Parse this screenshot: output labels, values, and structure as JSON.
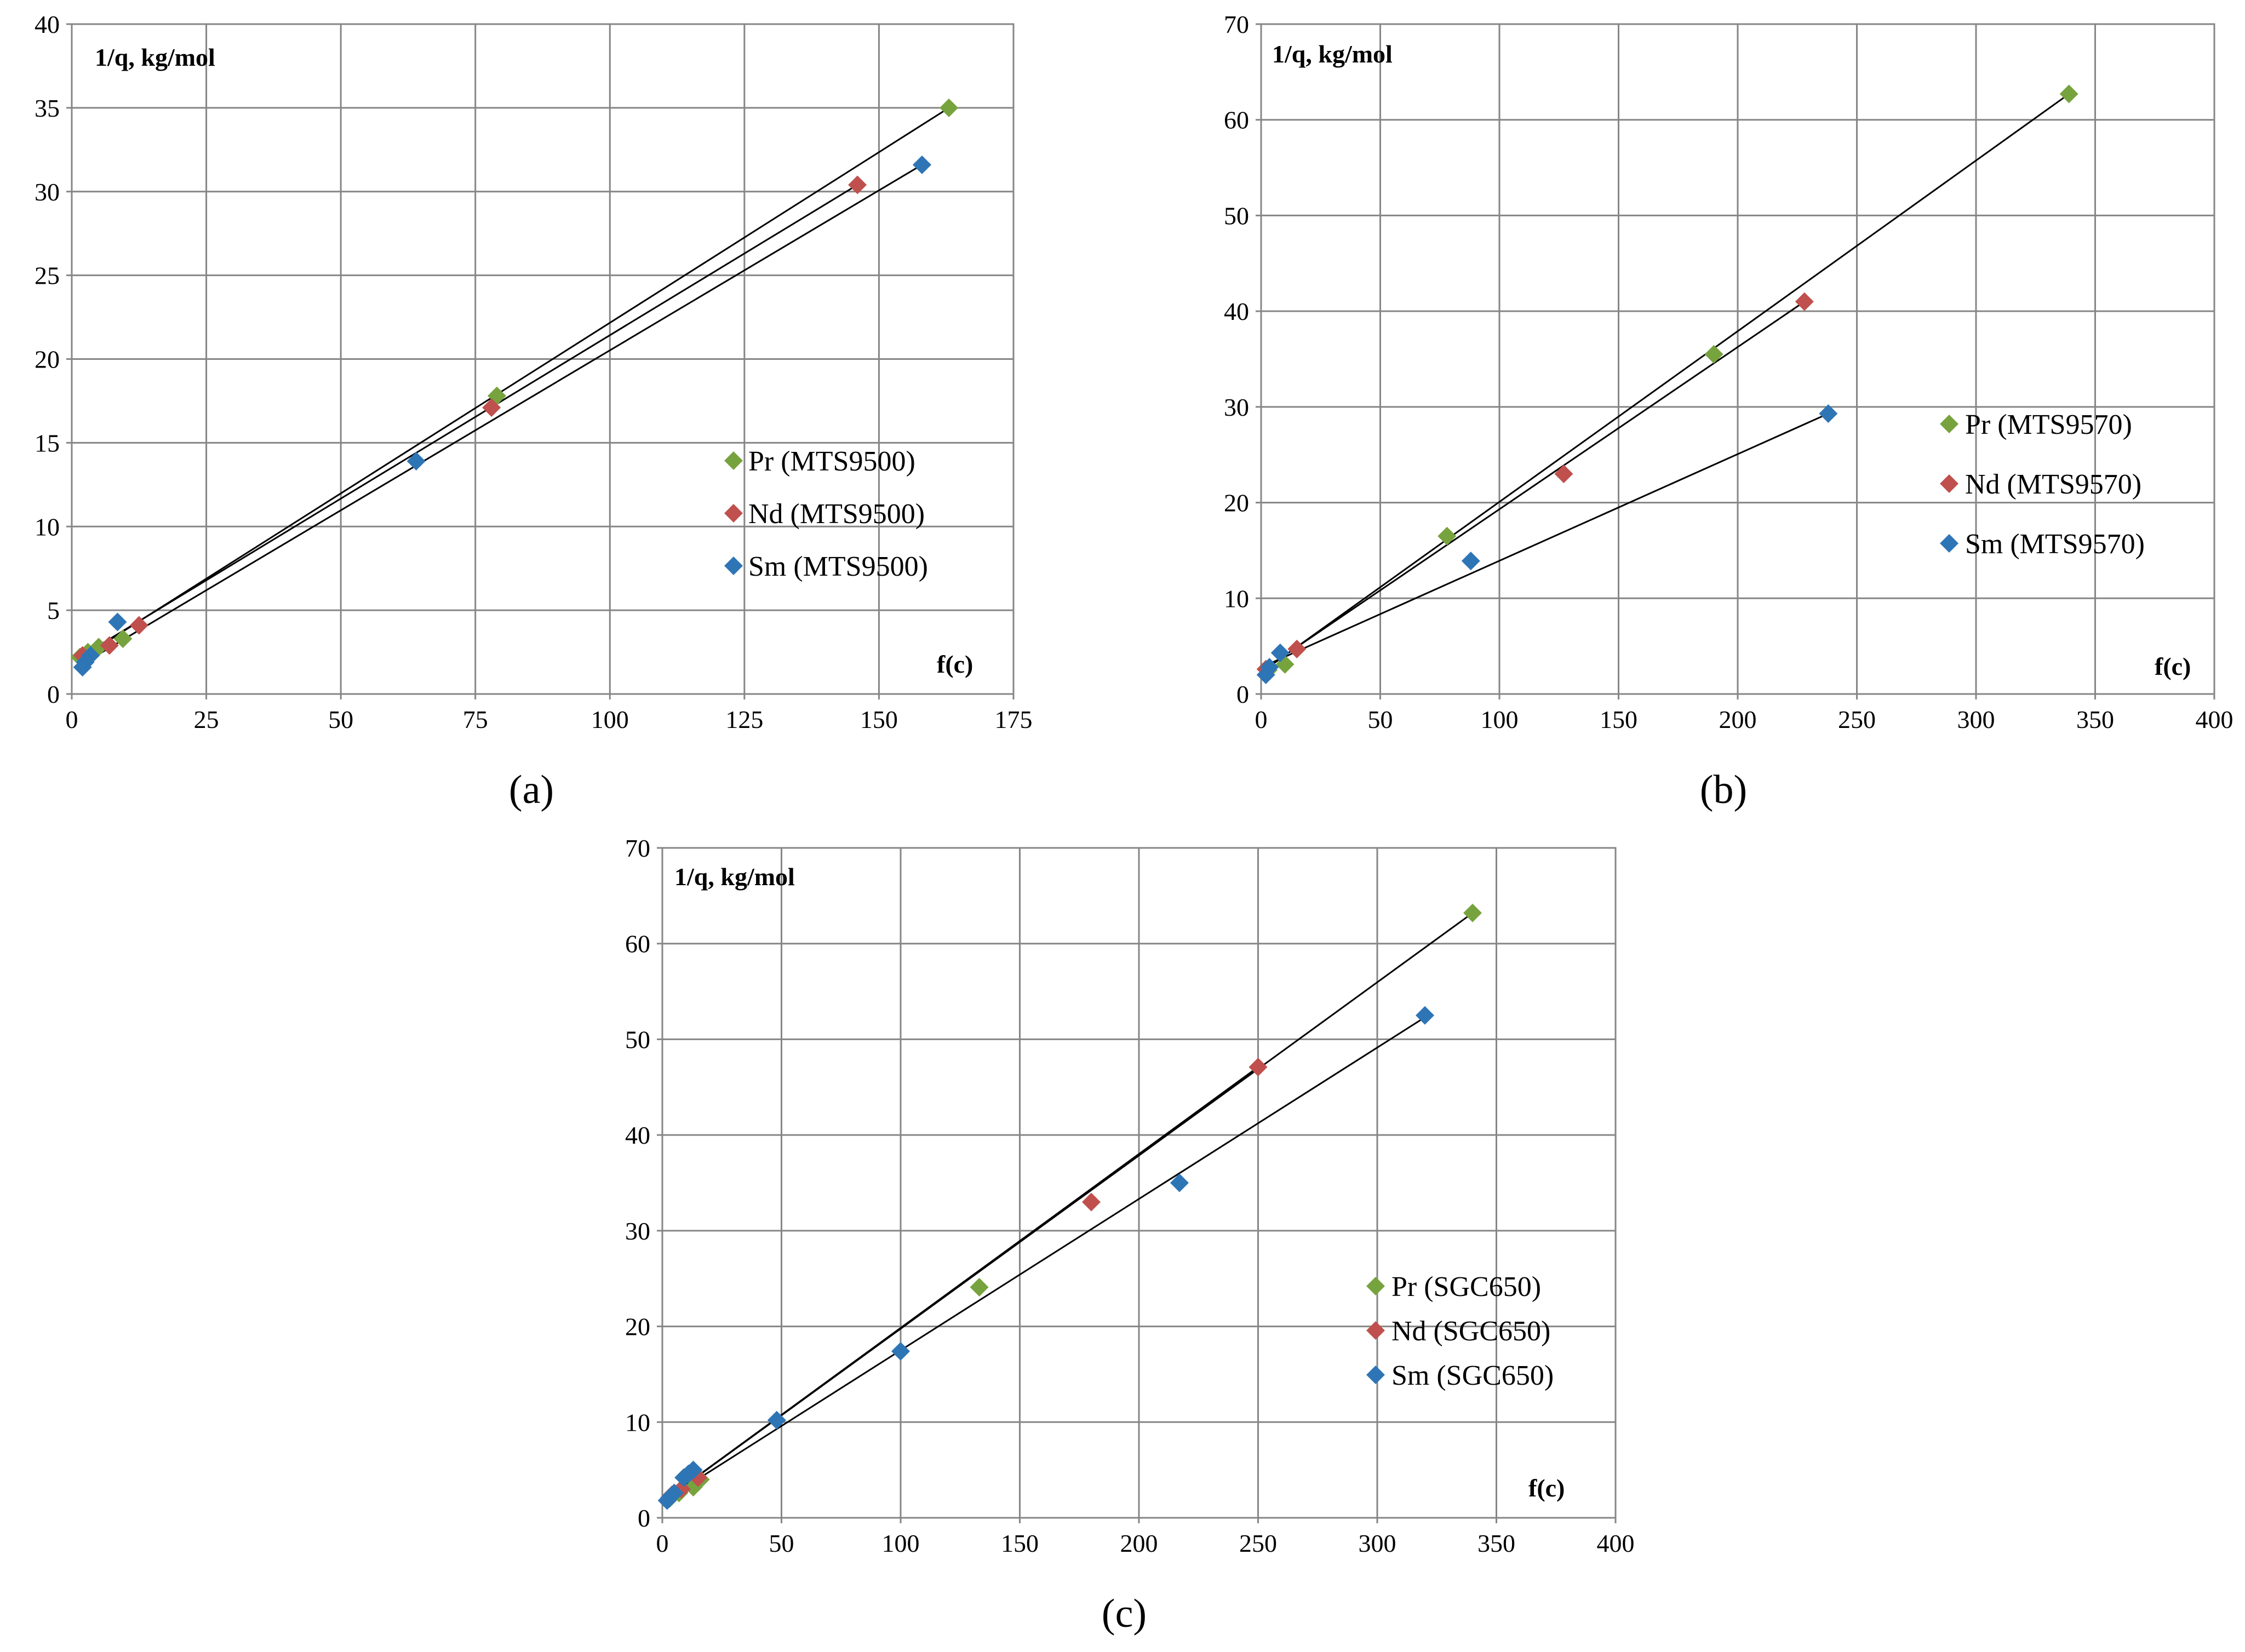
{
  "colors": {
    "Pr": "#77a33e",
    "Nd": "#c0504d",
    "Sm": "#2e75b6"
  },
  "chart_data": [
    {
      "type": "scatter",
      "panel_label": "(a)",
      "ylabel": "1/q, kg/mol",
      "xlabel": "f(c)",
      "xlim": [
        0,
        175
      ],
      "ylim": [
        0,
        40
      ],
      "xticks": [
        0,
        25,
        50,
        75,
        100,
        125,
        150,
        175
      ],
      "yticks": [
        0,
        5,
        10,
        15,
        20,
        25,
        30,
        35,
        40
      ],
      "legend_position": "center-right",
      "series": [
        {
          "name": "Pr (MTS9500)",
          "key": "Pr",
          "x": [
            1.5,
            3,
            5,
            9.5,
            79,
            163
          ],
          "y": [
            2.2,
            2.5,
            2.8,
            3.3,
            17.8,
            35
          ],
          "fit": [
            [
              2,
              2.2
            ],
            [
              163,
              35
            ]
          ]
        },
        {
          "name": "Nd (MTS9500)",
          "key": "Nd",
          "x": [
            2,
            7,
            12.5,
            78,
            146
          ],
          "y": [
            2.3,
            2.9,
            4.1,
            17.1,
            30.4
          ],
          "fit": [
            [
              2,
              2.3
            ],
            [
              146,
              30.4
            ]
          ]
        },
        {
          "name": "Sm (MTS9500)",
          "key": "Sm",
          "x": [
            2,
            2.5,
            3.5,
            8.5,
            64,
            158
          ],
          "y": [
            1.6,
            1.9,
            2.3,
            4.3,
            13.9,
            31.6
          ],
          "fit": [
            [
              2,
              1.8
            ],
            [
              158,
              31.6
            ]
          ]
        }
      ]
    },
    {
      "type": "scatter",
      "panel_label": "(b)",
      "ylabel": "1/q, kg/mol",
      "xlabel": "f(c)",
      "xlim": [
        0,
        400
      ],
      "ylim": [
        0,
        70
      ],
      "xticks": [
        0,
        50,
        100,
        150,
        200,
        250,
        300,
        350,
        400
      ],
      "yticks": [
        0,
        10,
        20,
        30,
        40,
        50,
        60,
        70
      ],
      "legend_position": "center-right",
      "series": [
        {
          "name": "Pr (MTS9570)",
          "key": "Pr",
          "x": [
            3,
            10,
            78,
            190,
            339
          ],
          "y": [
            2.5,
            3.1,
            16.5,
            35.5,
            62.7
          ],
          "fit": [
            [
              2,
              2.6
            ],
            [
              339,
              62.7
            ]
          ]
        },
        {
          "name": "Nd (MTS9570)",
          "key": "Nd",
          "x": [
            2,
            15,
            127,
            228
          ],
          "y": [
            2.6,
            4.7,
            23,
            41
          ],
          "fit": [
            [
              2,
              2.7
            ],
            [
              228,
              41
            ]
          ]
        },
        {
          "name": "Sm (MTS9570)",
          "key": "Sm",
          "x": [
            2,
            3.5,
            8,
            88,
            238
          ],
          "y": [
            2,
            2.8,
            4.3,
            13.9,
            29.3
          ],
          "fit": [
            [
              2,
              3
            ],
            [
              238,
              29.3
            ]
          ]
        }
      ]
    },
    {
      "type": "scatter",
      "panel_label": "(c)",
      "ylabel": "1/q, kg/mol",
      "xlabel": "f(c)",
      "xlim": [
        0,
        400
      ],
      "ylim": [
        0,
        70
      ],
      "xticks": [
        0,
        50,
        100,
        150,
        200,
        250,
        300,
        350,
        400
      ],
      "yticks": [
        0,
        10,
        20,
        30,
        40,
        50,
        60,
        70
      ],
      "legend_position": "bottom-right",
      "series": [
        {
          "name": "Pr (SGC650)",
          "key": "Pr",
          "x": [
            3,
            7,
            13,
            16,
            133,
            340
          ],
          "y": [
            2,
            2.6,
            3.2,
            4,
            24.1,
            63.2
          ],
          "fit": [
            [
              3,
              2.2
            ],
            [
              340,
              63.2
            ]
          ]
        },
        {
          "name": "Nd (SGC650)",
          "key": "Nd",
          "x": [
            4,
            8,
            15,
            180,
            250
          ],
          "y": [
            2.4,
            3,
            4.2,
            33,
            47.1
          ],
          "fit": [
            [
              4,
              2.4
            ],
            [
              250,
              47.1
            ]
          ]
        },
        {
          "name": "Sm (SGC650)",
          "key": "Sm",
          "x": [
            2,
            3,
            5,
            9,
            11,
            13,
            48,
            100,
            217,
            320
          ],
          "y": [
            1.8,
            2.1,
            2.6,
            4.2,
            4.6,
            5,
            10.2,
            17.4,
            35,
            52.5
          ],
          "fit": [
            [
              2,
              2
            ],
            [
              320,
              52.3
            ]
          ]
        }
      ]
    }
  ]
}
